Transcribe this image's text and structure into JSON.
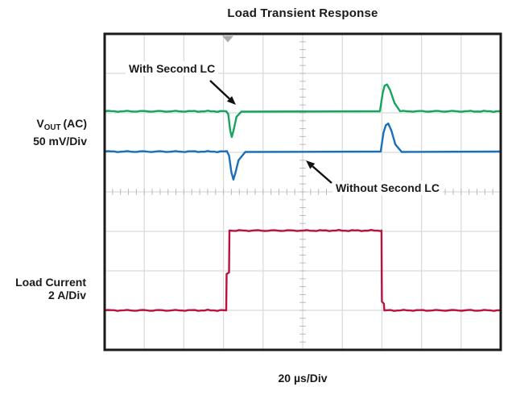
{
  "title": "Load Transient Response",
  "axis": {
    "x_label": "20 µs/Div",
    "left_labels": {
      "vout": {
        "v": "V",
        "sub": "OUT",
        "rest": "(AC)",
        "scale": "50 mV/Div"
      },
      "load": {
        "name": "Load Current",
        "scale": "2 A/Div"
      }
    }
  },
  "annotations": {
    "with_lc": "With Second LC",
    "without_lc": "Without Second LC"
  },
  "colors": {
    "green": "#14a55f",
    "blue": "#1a6fba",
    "red": "#b8123f",
    "grid": "#d9d9d9",
    "tick": "#b9b9b9",
    "frame": "#1a1a1a",
    "trigger": "#a9a9a9",
    "arrow": "#111111"
  },
  "chart_data": {
    "type": "line",
    "title": "Load Transient Response",
    "xlabel": "20 µs/Div",
    "x_divisions": 10,
    "y_divisions": 8,
    "time_per_div_us": 20,
    "grid": true,
    "legend_position": "annotated-on-plot",
    "trigger_marker_div": 3.11,
    "events": {
      "load_step_rise_div": 3.1,
      "load_step_fall_div": 7.0,
      "load_step_rise_time_us": 62,
      "load_step_fall_time_us": 140,
      "load_step_amplitude_A": 4,
      "vout_dip_with_lc_mV": -33,
      "vout_overshoot_with_lc_mV": 34,
      "vout_dip_without_lc_mV": -36,
      "vout_overshoot_without_lc_mV": 36
    },
    "series": [
      {
        "name": "VOUT (AC) With Second LC",
        "units": "50 mV/Div",
        "color_key": "green",
        "points_div": [
          [
            0,
            1.96
          ],
          [
            3.07,
            1.96
          ],
          [
            3.12,
            2.03
          ],
          [
            3.17,
            2.45
          ],
          [
            3.21,
            2.61
          ],
          [
            3.26,
            2.42
          ],
          [
            3.33,
            2.1
          ],
          [
            3.45,
            1.97
          ],
          [
            6.95,
            1.96
          ],
          [
            7.02,
            1.5
          ],
          [
            7.07,
            1.31
          ],
          [
            7.13,
            1.28
          ],
          [
            7.21,
            1.43
          ],
          [
            7.32,
            1.75
          ],
          [
            7.46,
            1.96
          ],
          [
            10,
            1.96
          ]
        ]
      },
      {
        "name": "VOUT (AC) Without Second LC",
        "units": "50 mV/Div",
        "color_key": "blue",
        "points_div": [
          [
            0,
            2.98
          ],
          [
            3.09,
            2.98
          ],
          [
            3.14,
            3.08
          ],
          [
            3.2,
            3.5
          ],
          [
            3.25,
            3.69
          ],
          [
            3.3,
            3.52
          ],
          [
            3.38,
            3.2
          ],
          [
            3.55,
            2.99
          ],
          [
            6.97,
            2.98
          ],
          [
            7.04,
            2.5
          ],
          [
            7.1,
            2.31
          ],
          [
            7.16,
            2.27
          ],
          [
            7.24,
            2.45
          ],
          [
            7.34,
            2.8
          ],
          [
            7.5,
            2.99
          ],
          [
            10,
            2.98
          ]
        ]
      },
      {
        "name": "Load Current",
        "units": "2 A/Div",
        "color_key": "red",
        "points_div": [
          [
            0,
            7.0
          ],
          [
            3.07,
            7.0
          ],
          [
            3.08,
            6.08
          ],
          [
            3.14,
            6.04
          ],
          [
            3.15,
            4.98
          ],
          [
            6.99,
            4.98
          ],
          [
            7.0,
            6.78
          ],
          [
            7.05,
            6.83
          ],
          [
            7.06,
            7.0
          ],
          [
            10,
            7.0
          ]
        ]
      }
    ]
  }
}
